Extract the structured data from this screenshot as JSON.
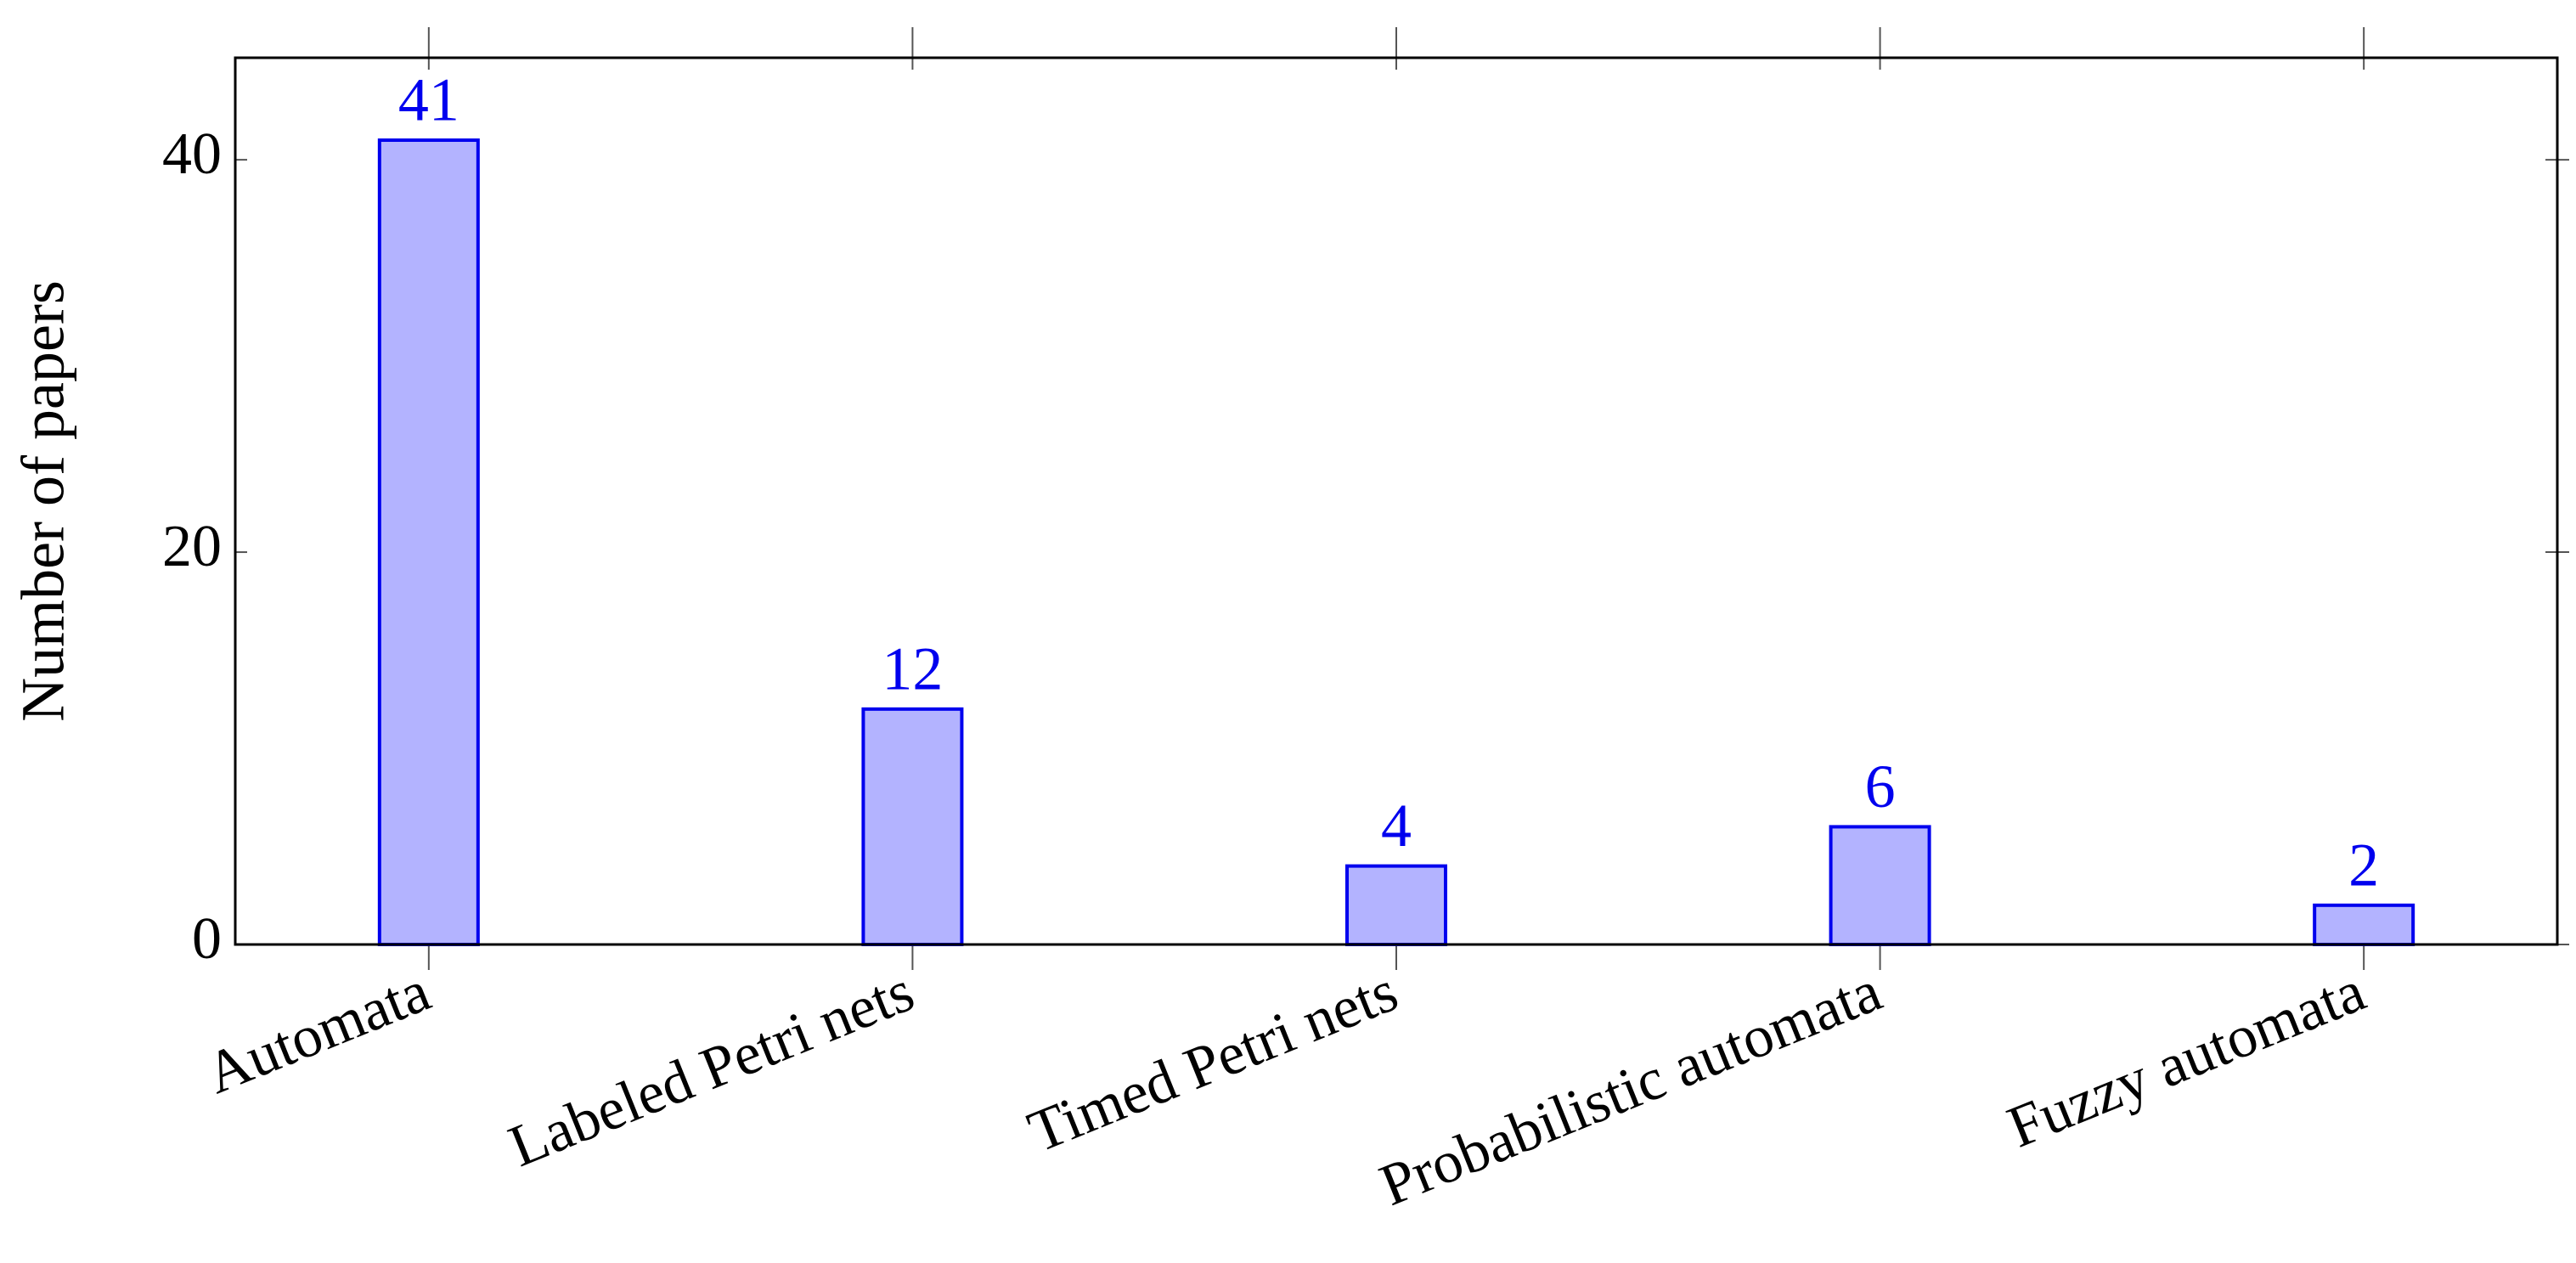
{
  "chart_data": {
    "type": "bar",
    "y_label": "Number of papers",
    "categories": [
      "Automata",
      "Labeled Petri nets",
      "Timed Petri nets",
      "Probabilistic automata",
      "Fuzzy automata"
    ],
    "values": [
      41,
      12,
      4,
      6,
      2
    ],
    "color": "#b3b3ff",
    "edge_color": "#0000ee",
    "ylim": [
      0,
      45.2
    ],
    "yticks": [
      0,
      20,
      40
    ],
    "grid": false
  }
}
